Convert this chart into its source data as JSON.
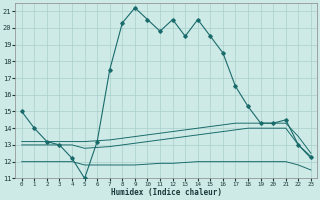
{
  "title": "",
  "xlabel": "Humidex (Indice chaleur)",
  "ylabel": "",
  "bg_color": "#ceeae7",
  "grid_color": "#aacfcc",
  "line_color": "#1a6b6b",
  "xlim": [
    -0.5,
    23.5
  ],
  "ylim": [
    11,
    21.5
  ],
  "yticks": [
    11,
    12,
    13,
    14,
    15,
    16,
    17,
    18,
    19,
    20,
    21
  ],
  "xticks": [
    0,
    1,
    2,
    3,
    4,
    5,
    6,
    7,
    8,
    9,
    10,
    11,
    12,
    13,
    14,
    15,
    16,
    17,
    18,
    19,
    20,
    21,
    22,
    23
  ],
  "series": {
    "main": {
      "x": [
        0,
        1,
        2,
        3,
        4,
        5,
        6,
        7,
        8,
        9,
        10,
        11,
        12,
        13,
        14,
        15,
        16,
        17,
        18,
        19,
        20,
        21,
        22,
        23
      ],
      "y": [
        15.0,
        14.0,
        13.2,
        13.0,
        12.2,
        11.0,
        13.2,
        17.5,
        20.3,
        21.2,
        20.5,
        19.8,
        20.5,
        19.5,
        20.5,
        19.5,
        18.5,
        16.5,
        15.3,
        14.3,
        14.3,
        14.5,
        13.0,
        12.3
      ]
    },
    "line1": {
      "x": [
        0,
        1,
        2,
        3,
        4,
        5,
        6,
        7,
        8,
        9,
        10,
        11,
        12,
        13,
        14,
        15,
        16,
        17,
        18,
        19,
        20,
        21,
        22,
        23
      ],
      "y": [
        13.2,
        13.2,
        13.2,
        13.2,
        13.2,
        13.2,
        13.25,
        13.3,
        13.4,
        13.5,
        13.6,
        13.7,
        13.8,
        13.9,
        14.0,
        14.1,
        14.2,
        14.3,
        14.3,
        14.3,
        14.3,
        14.3,
        13.5,
        12.5
      ]
    },
    "line2": {
      "x": [
        0,
        1,
        2,
        3,
        4,
        5,
        6,
        7,
        8,
        9,
        10,
        11,
        12,
        13,
        14,
        15,
        16,
        17,
        18,
        19,
        20,
        21,
        22,
        23
      ],
      "y": [
        13.0,
        13.0,
        13.0,
        13.0,
        13.0,
        12.8,
        12.85,
        12.9,
        13.0,
        13.1,
        13.2,
        13.3,
        13.4,
        13.5,
        13.6,
        13.7,
        13.8,
        13.9,
        14.0,
        14.0,
        14.0,
        14.0,
        13.0,
        12.2
      ]
    },
    "line3": {
      "x": [
        0,
        1,
        2,
        3,
        4,
        5,
        6,
        7,
        8,
        9,
        10,
        11,
        12,
        13,
        14,
        15,
        16,
        17,
        18,
        19,
        20,
        21,
        22,
        23
      ],
      "y": [
        12.0,
        12.0,
        12.0,
        12.0,
        12.0,
        11.8,
        11.8,
        11.8,
        11.8,
        11.8,
        11.85,
        11.9,
        11.9,
        11.95,
        12.0,
        12.0,
        12.0,
        12.0,
        12.0,
        12.0,
        12.0,
        12.0,
        11.8,
        11.5
      ]
    }
  }
}
